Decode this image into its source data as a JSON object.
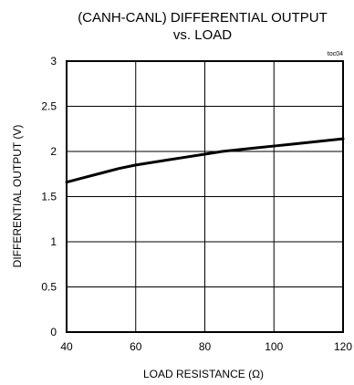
{
  "chart_data": {
    "type": "line",
    "title_lines": [
      "(CANH-CANL) DIFFERENTIAL OUTPUT",
      "vs. LOAD"
    ],
    "annotation": "toc04",
    "xlabel": "LOAD RESISTANCE (Ω)",
    "ylabel": "DIFFERENTIAL OUTPUT (V)",
    "xlim": [
      40,
      120
    ],
    "ylim": [
      0,
      3
    ],
    "x_ticks": [
      40,
      60,
      80,
      100,
      120
    ],
    "y_ticks": [
      0,
      0.5,
      1,
      1.5,
      2,
      2.5,
      3
    ],
    "x_tick_labels": [
      "40",
      "60",
      "80",
      "100",
      "120"
    ],
    "y_tick_labels": [
      "0",
      "0.5",
      "1",
      "1.5",
      "2",
      "2.5",
      "3"
    ],
    "grid": true,
    "series": [
      {
        "x": [
          40,
          45,
          50,
          55,
          60,
          65,
          70,
          75,
          80,
          85,
          90,
          95,
          100,
          105,
          110,
          115,
          120
        ],
        "y": [
          1.66,
          1.71,
          1.76,
          1.81,
          1.85,
          1.88,
          1.91,
          1.94,
          1.97,
          2.0,
          2.02,
          2.04,
          2.06,
          2.08,
          2.1,
          2.12,
          2.14
        ]
      }
    ],
    "colors": {
      "line": "#000000",
      "grid": "#000000",
      "frame": "#000000"
    }
  }
}
